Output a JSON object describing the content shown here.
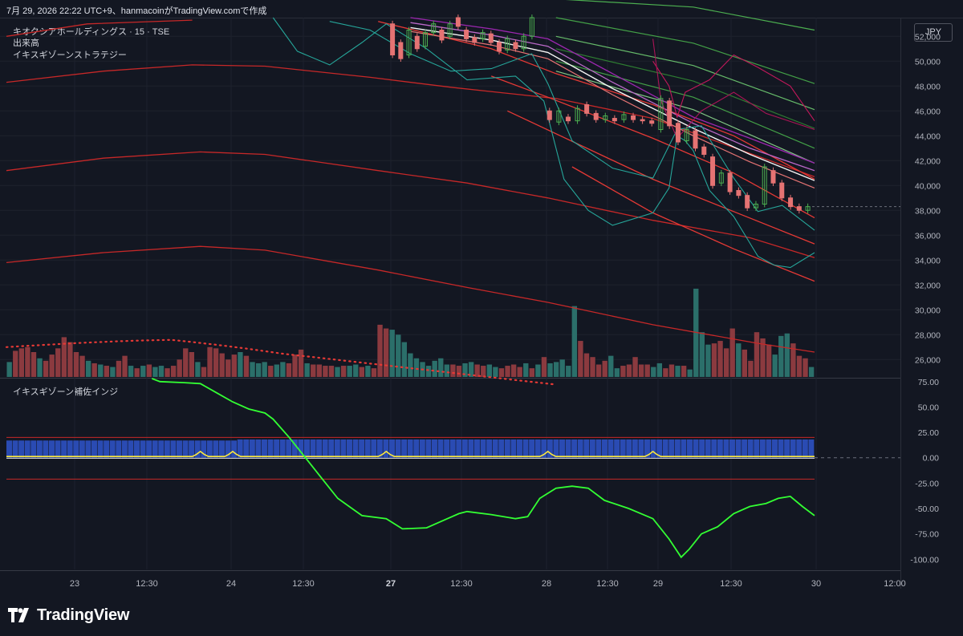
{
  "caption": "7月 29, 2026 22:22 UTC+9、hanmacoinがTradingView.comで作成",
  "legend": {
    "symbol": "キオクシアホールディングス · 15 · TSE",
    "volume": "出来高",
    "strategy": "イキスギゾーンストラテジー",
    "indicator": "イキスギゾーン補佐インジ"
  },
  "currency": "JPY",
  "brand": "TradingView",
  "icons": {
    "brand_logo": "tradingview-logo-icon"
  },
  "colors": {
    "up": "#26a69a",
    "down": "#ef5350",
    "candle_up": "#4caf50",
    "candle_down": "#e57373",
    "osc_green": "#33ff33",
    "osc_blue": "#2a4bb3",
    "osc_yellow": "#ffeb3b"
  },
  "chart_data": [
    {
      "type": "candlestick",
      "ylim": [
        24600,
        53500
      ],
      "price_ticks": [
        "52,000",
        "50,000",
        "48,000",
        "46,000",
        "44,000",
        "42,000",
        "40,000",
        "38,000",
        "36,000",
        "34,000",
        "32,000",
        "30,000",
        "28,000",
        "26,000"
      ],
      "price_tick_values": [
        52000,
        50000,
        48000,
        46000,
        44000,
        42000,
        40000,
        38000,
        36000,
        34000,
        32000,
        30000,
        28000,
        26000
      ],
      "time_ticks": [
        "23",
        "12:30",
        "24",
        "12:30",
        "27",
        "12:30",
        "28",
        "12:30",
        "29",
        "12:30",
        "30",
        "12:00"
      ],
      "time_ticks_bold": [
        false,
        false,
        false,
        false,
        true,
        false,
        false,
        false,
        false,
        false,
        false,
        false
      ],
      "last_price": 38300,
      "candles_day27": [
        [
          53000,
          50500
        ],
        [
          51500,
          50200
        ],
        [
          50500,
          52500
        ],
        [
          52000,
          51000
        ],
        [
          51200,
          52300
        ],
        [
          52300,
          53000
        ],
        [
          52500,
          51700
        ],
        [
          52000,
          53000
        ],
        [
          53500,
          52800
        ],
        [
          52500,
          51800
        ],
        [
          51900,
          51500
        ],
        [
          51800,
          52300
        ],
        [
          52200,
          51500
        ],
        [
          51500,
          50800
        ],
        [
          50900,
          51800
        ],
        [
          51500,
          51000
        ],
        [
          51000,
          52000
        ],
        [
          52000,
          53500
        ]
      ],
      "candles_day28": [
        [
          46000,
          45300
        ],
        [
          45100,
          46000
        ],
        [
          45500,
          45200
        ],
        [
          45200,
          46200
        ],
        [
          46500,
          45800
        ],
        [
          45800,
          45300
        ],
        [
          45300,
          45600
        ],
        [
          45400,
          45200
        ],
        [
          45300,
          45700
        ],
        [
          45600,
          45300
        ],
        [
          45300,
          45200
        ],
        [
          45200,
          45000
        ]
      ],
      "candles_day29": [
        [
          44500,
          47000
        ],
        [
          46800,
          44800
        ],
        [
          45000,
          43500
        ],
        [
          43600,
          44500
        ],
        [
          44400,
          43000
        ],
        [
          43100,
          42500
        ],
        [
          42300,
          40000
        ],
        [
          40200,
          41000
        ],
        [
          41000,
          39500
        ],
        [
          39600,
          39200
        ],
        [
          39200,
          38200
        ],
        [
          38200,
          38500
        ],
        [
          38500,
          41500
        ],
        [
          41200,
          40200
        ],
        [
          40200,
          39000
        ],
        [
          39000,
          38300
        ],
        [
          38300,
          38000
        ],
        [
          38000,
          38300
        ]
      ]
    },
    {
      "type": "bar",
      "name": "出来高",
      "volumes": [
        25800,
        26700,
        26900,
        27000,
        26600,
        26100,
        25900,
        26400,
        26900,
        27800,
        27400,
        26600,
        26300,
        25900,
        25700,
        25600,
        25500,
        25400,
        25900,
        26300,
        25500,
        25300,
        25500,
        25600,
        25400,
        25500,
        25300,
        25500,
        26000,
        26900,
        26600,
        25800,
        25400,
        27000,
        26900,
        26500,
        26000,
        26400,
        26600,
        26300,
        25800,
        25700,
        25800,
        25500,
        25600,
        25800,
        25700,
        26400,
        26800,
        25700,
        25600,
        25600,
        25500,
        25500,
        25400,
        25500,
        25500,
        25600,
        25400,
        25500,
        25300,
        28800,
        28500,
        28400,
        28000,
        27400,
        26500,
        26100,
        25800,
        25500,
        25900,
        26100,
        25600,
        25600,
        25500,
        25700,
        25800,
        25600,
        25500,
        25600,
        25400,
        25300,
        25500,
        25600,
        25400,
        25700,
        25300,
        25600,
        26200,
        25700,
        25800,
        26000,
        25500,
        30300,
        27500,
        26500,
        26200,
        25600,
        25900,
        26300,
        25300,
        25500,
        25600,
        26200,
        25600,
        25600,
        25400,
        25700,
        25300,
        25600,
        25500,
        25500,
        25200,
        31700,
        28200,
        27200,
        27300,
        27500,
        26900,
        28500,
        27300,
        26800,
        25900,
        28200,
        27700,
        27200,
        26400,
        27900,
        28100,
        27300,
        26300,
        26100,
        25400
      ],
      "volume_up": [
        1,
        0,
        0,
        0,
        0,
        1,
        0,
        0,
        0,
        0,
        0,
        0,
        0,
        1,
        0,
        1,
        0,
        1,
        0,
        0,
        1,
        0,
        1,
        0,
        1,
        1,
        0,
        0,
        0,
        0,
        0,
        1,
        0,
        0,
        0,
        0,
        0,
        0,
        1,
        0,
        1,
        1,
        1,
        0,
        1,
        1,
        0,
        0,
        0,
        1,
        0,
        0,
        0,
        0,
        1,
        0,
        1,
        1,
        0,
        1,
        0,
        0,
        0,
        1,
        1,
        1,
        1,
        1,
        1,
        1,
        1,
        1,
        1,
        0,
        0,
        1,
        1,
        0,
        0,
        1,
        1,
        0,
        0,
        0,
        0,
        1,
        0,
        1,
        0,
        1,
        1,
        1,
        1,
        1,
        0,
        0,
        0,
        0,
        0,
        1,
        1,
        0,
        0,
        0,
        0,
        0,
        1,
        1,
        0,
        0,
        1,
        0,
        1,
        1,
        1,
        1,
        0,
        0,
        0,
        0,
        1,
        0,
        0,
        0,
        0,
        0,
        1,
        1,
        1,
        0,
        0,
        0,
        1
      ],
      "vma_dotted_at_first_bar": 27000
    },
    {
      "type": "line",
      "name": "イキスギゾーン補佐インジ",
      "ylim": [
        -110,
        78
      ],
      "ticks": [
        "75.00",
        "50.00",
        "25.00",
        "0.00",
        "-25.00",
        "-50.00",
        "-75.00",
        "-100.00"
      ],
      "tick_values": [
        75,
        50,
        25,
        0,
        -25,
        -50,
        -75,
        -100
      ],
      "upper_band": 20,
      "lower_band": -21,
      "histogram_level": 17,
      "green_line": [
        [
          0.18,
          78
        ],
        [
          0.19,
          75
        ],
        [
          0.22,
          74
        ],
        [
          0.24,
          73
        ],
        [
          0.26,
          64
        ],
        [
          0.28,
          55
        ],
        [
          0.3,
          48
        ],
        [
          0.32,
          44
        ],
        [
          0.33,
          38
        ],
        [
          0.35,
          20
        ],
        [
          0.37,
          0
        ],
        [
          0.39,
          -20
        ],
        [
          0.41,
          -40
        ],
        [
          0.44,
          -57
        ],
        [
          0.47,
          -60
        ],
        [
          0.49,
          -70
        ],
        [
          0.52,
          -69
        ],
        [
          0.54,
          -62
        ],
        [
          0.56,
          -55
        ],
        [
          0.57,
          -53
        ],
        [
          0.6,
          -56
        ],
        [
          0.63,
          -60
        ],
        [
          0.645,
          -58
        ],
        [
          0.66,
          -40
        ],
        [
          0.68,
          -30
        ],
        [
          0.7,
          -28
        ],
        [
          0.72,
          -30
        ],
        [
          0.74,
          -42
        ],
        [
          0.77,
          -50
        ],
        [
          0.8,
          -60
        ],
        [
          0.82,
          -80
        ],
        [
          0.835,
          -98
        ],
        [
          0.845,
          -90
        ],
        [
          0.86,
          -75
        ],
        [
          0.88,
          -68
        ],
        [
          0.9,
          -55
        ],
        [
          0.92,
          -48
        ],
        [
          0.94,
          -45
        ],
        [
          0.955,
          -40
        ],
        [
          0.97,
          -38
        ],
        [
          0.985,
          -48
        ],
        [
          1.0,
          -57
        ]
      ]
    }
  ]
}
